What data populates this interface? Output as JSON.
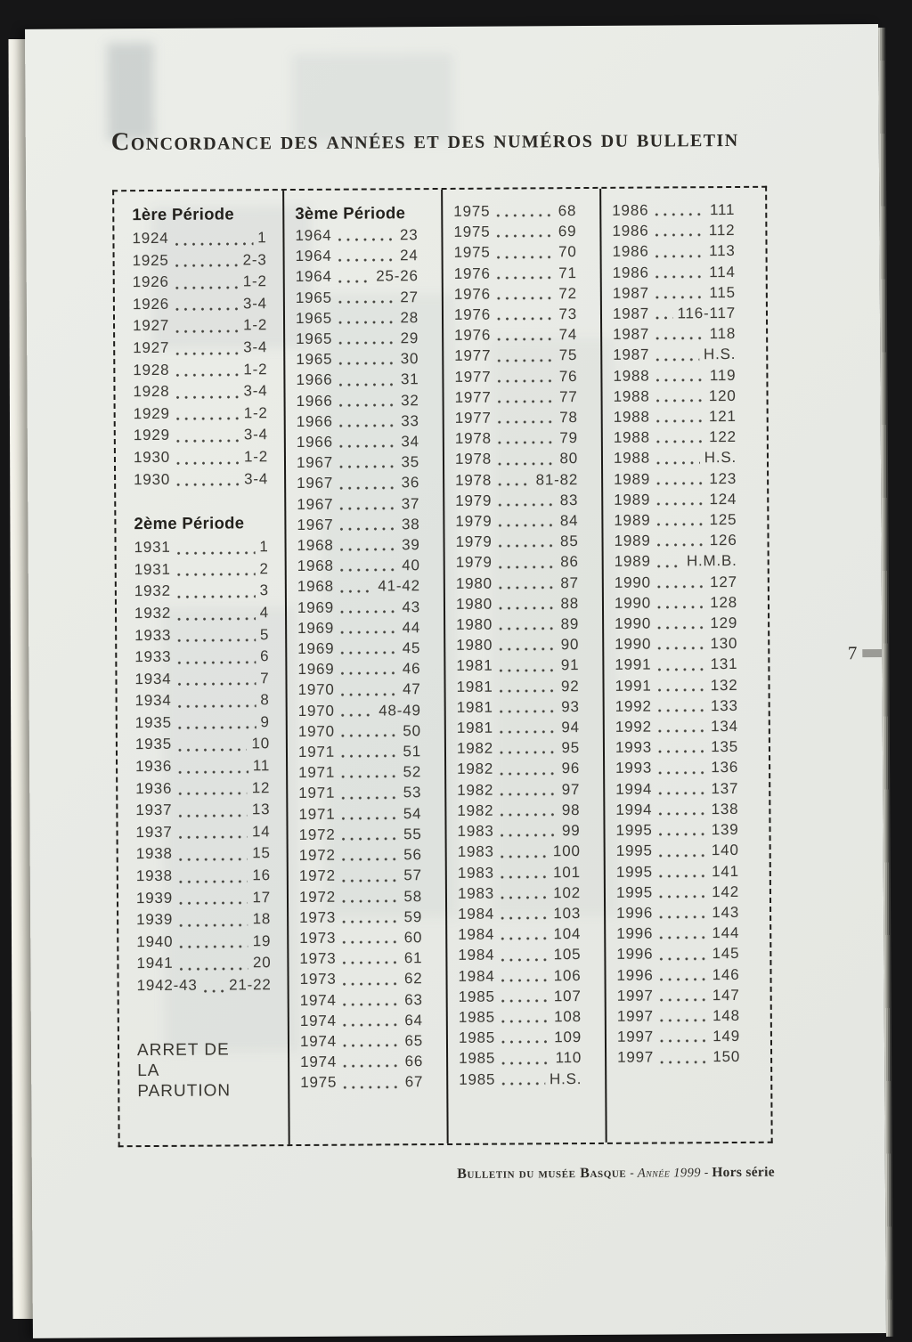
{
  "page": {
    "title": "Concordance des années et des numéros du bulletin",
    "page_number": "7",
    "footer": {
      "journal": "Bulletin du musée Basque",
      "separator1": " - ",
      "year": "Année 1999",
      "separator2": " - ",
      "series": "Hors série"
    }
  },
  "table": {
    "columns": [
      {
        "sections": [
          {
            "heading": "1ère Période",
            "entries": [
              [
                "1924",
                "1"
              ],
              [
                "1925",
                "2-3"
              ],
              [
                "1926",
                "1-2"
              ],
              [
                "1926",
                "3-4"
              ],
              [
                "1927",
                "1-2"
              ],
              [
                "1927",
                "3-4"
              ],
              [
                "1928",
                "1-2"
              ],
              [
                "1928",
                "3-4"
              ],
              [
                "1929",
                "1-2"
              ],
              [
                "1929",
                "3-4"
              ],
              [
                "1930",
                "1-2"
              ],
              [
                "1930",
                "3-4"
              ]
            ]
          },
          {
            "heading": "2ème Période",
            "entries": [
              [
                "1931",
                "1"
              ],
              [
                "1931",
                "2"
              ],
              [
                "1932",
                "3"
              ],
              [
                "1932",
                "4"
              ],
              [
                "1933",
                "5"
              ],
              [
                "1933",
                "6"
              ],
              [
                "1934",
                "7"
              ],
              [
                "1934",
                "8"
              ],
              [
                "1935",
                "9"
              ],
              [
                "1935",
                "10"
              ],
              [
                "1936",
                "11"
              ],
              [
                "1936",
                "12"
              ],
              [
                "1937",
                "13"
              ],
              [
                "1937",
                "14"
              ],
              [
                "1938",
                "15"
              ],
              [
                "1938",
                "16"
              ],
              [
                "1939",
                "17"
              ],
              [
                "1939",
                "18"
              ],
              [
                "1940",
                "19"
              ],
              [
                "1941",
                "20"
              ],
              [
                "1942-43",
                "21-22"
              ]
            ]
          }
        ],
        "note": "ARRET DE LA PARUTION"
      },
      {
        "sections": [
          {
            "heading": "3ème Période",
            "entries": [
              [
                "1964",
                "23"
              ],
              [
                "1964",
                "24"
              ],
              [
                "1964",
                "25-26"
              ],
              [
                "1965",
                "27"
              ],
              [
                "1965",
                "28"
              ],
              [
                "1965",
                "29"
              ],
              [
                "1965",
                "30"
              ],
              [
                "1966",
                "31"
              ],
              [
                "1966",
                "32"
              ],
              [
                "1966",
                "33"
              ],
              [
                "1966",
                "34"
              ],
              [
                "1967",
                "35"
              ],
              [
                "1967",
                "36"
              ],
              [
                "1967",
                "37"
              ],
              [
                "1967",
                "38"
              ],
              [
                "1968",
                "39"
              ],
              [
                "1968",
                "40"
              ],
              [
                "1968",
                "41-42"
              ],
              [
                "1969",
                "43"
              ],
              [
                "1969",
                "44"
              ],
              [
                "1969",
                "45"
              ],
              [
                "1969",
                "46"
              ],
              [
                "1970",
                "47"
              ],
              [
                "1970",
                "48-49"
              ],
              [
                "1970",
                "50"
              ],
              [
                "1971",
                "51"
              ],
              [
                "1971",
                "52"
              ],
              [
                "1971",
                "53"
              ],
              [
                "1971",
                "54"
              ],
              [
                "1972",
                "55"
              ],
              [
                "1972",
                "56"
              ],
              [
                "1972",
                "57"
              ],
              [
                "1972",
                "58"
              ],
              [
                "1973",
                "59"
              ],
              [
                "1973",
                "60"
              ],
              [
                "1973",
                "61"
              ],
              [
                "1973",
                "62"
              ],
              [
                "1974",
                "63"
              ],
              [
                "1974",
                "64"
              ],
              [
                "1974",
                "65"
              ],
              [
                "1974",
                "66"
              ],
              [
                "1975",
                "67"
              ]
            ]
          }
        ]
      },
      {
        "sections": [
          {
            "heading": "",
            "entries": [
              [
                "1975",
                "68"
              ],
              [
                "1975",
                "69"
              ],
              [
                "1975",
                "70"
              ],
              [
                "1976",
                "71"
              ],
              [
                "1976",
                "72"
              ],
              [
                "1976",
                "73"
              ],
              [
                "1976",
                "74"
              ],
              [
                "1977",
                "75"
              ],
              [
                "1977",
                "76"
              ],
              [
                "1977",
                "77"
              ],
              [
                "1977",
                "78"
              ],
              [
                "1978",
                "79"
              ],
              [
                "1978",
                "80"
              ],
              [
                "1978",
                "81-82"
              ],
              [
                "1979",
                "83"
              ],
              [
                "1979",
                "84"
              ],
              [
                "1979",
                "85"
              ],
              [
                "1979",
                "86"
              ],
              [
                "1980",
                "87"
              ],
              [
                "1980",
                "88"
              ],
              [
                "1980",
                "89"
              ],
              [
                "1980",
                "90"
              ],
              [
                "1981",
                "91"
              ],
              [
                "1981",
                "92"
              ],
              [
                "1981",
                "93"
              ],
              [
                "1981",
                "94"
              ],
              [
                "1982",
                "95"
              ],
              [
                "1982",
                "96"
              ],
              [
                "1982",
                "97"
              ],
              [
                "1982",
                "98"
              ],
              [
                "1983",
                "99"
              ],
              [
                "1983",
                "100"
              ],
              [
                "1983",
                "101"
              ],
              [
                "1983",
                "102"
              ],
              [
                "1984",
                "103"
              ],
              [
                "1984",
                "104"
              ],
              [
                "1984",
                "105"
              ],
              [
                "1984",
                "106"
              ],
              [
                "1985",
                "107"
              ],
              [
                "1985",
                "108"
              ],
              [
                "1985",
                "109"
              ],
              [
                "1985",
                "110"
              ],
              [
                "1985",
                "H.S."
              ]
            ]
          }
        ]
      },
      {
        "sections": [
          {
            "heading": "",
            "entries": [
              [
                "1986",
                "111"
              ],
              [
                "1986",
                "112"
              ],
              [
                "1986",
                "113"
              ],
              [
                "1986",
                "114"
              ],
              [
                "1987",
                "115"
              ],
              [
                "1987",
                "116-117"
              ],
              [
                "1987",
                "118"
              ],
              [
                "1987",
                "H.S."
              ],
              [
                "1988",
                "119"
              ],
              [
                "1988",
                "120"
              ],
              [
                "1988",
                "121"
              ],
              [
                "1988",
                "122"
              ],
              [
                "1988",
                "H.S."
              ],
              [
                "1989",
                "123"
              ],
              [
                "1989",
                "124"
              ],
              [
                "1989",
                "125"
              ],
              [
                "1989",
                "126"
              ],
              [
                "1989",
                "H.M.B."
              ],
              [
                "1990",
                "127"
              ],
              [
                "1990",
                "128"
              ],
              [
                "1990",
                "129"
              ],
              [
                "1990",
                "130"
              ],
              [
                "1991",
                "131"
              ],
              [
                "1991",
                "132"
              ],
              [
                "1992",
                "133"
              ],
              [
                "1992",
                "134"
              ],
              [
                "1993",
                "135"
              ],
              [
                "1993",
                "136"
              ],
              [
                "1994",
                "137"
              ],
              [
                "1994",
                "138"
              ],
              [
                "1995",
                "139"
              ],
              [
                "1995",
                "140"
              ],
              [
                "1995",
                "141"
              ],
              [
                "1995",
                "142"
              ],
              [
                "1996",
                "143"
              ],
              [
                "1996",
                "144"
              ],
              [
                "1996",
                "145"
              ],
              [
                "1996",
                "146"
              ],
              [
                "1997",
                "147"
              ],
              [
                "1997",
                "148"
              ],
              [
                "1997",
                "149"
              ],
              [
                "1997",
                "150"
              ]
            ]
          }
        ]
      }
    ]
  }
}
